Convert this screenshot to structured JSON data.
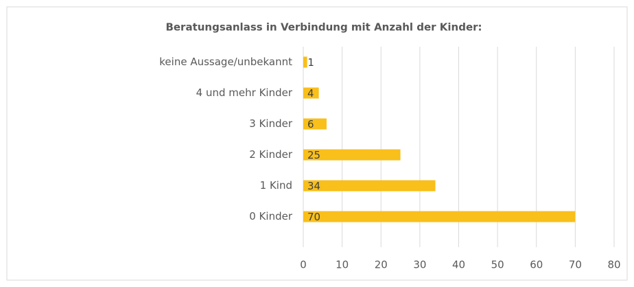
{
  "chart_data": {
    "type": "bar",
    "orientation": "horizontal",
    "title": "Beratungsanlass in Verbindung mit Anzahl der Kinder:",
    "categories": [
      "keine Aussage/unbekannt",
      "4 und mehr Kinder",
      "3 Kinder",
      "2 Kinder",
      "1 Kind",
      "0 Kinder"
    ],
    "values": [
      1,
      4,
      6,
      25,
      34,
      70
    ],
    "color": "#f9bf1a",
    "xlim": [
      0,
      80
    ],
    "xticks": [
      0,
      10,
      20,
      30,
      40,
      50,
      60,
      70,
      80
    ],
    "grid": true
  }
}
